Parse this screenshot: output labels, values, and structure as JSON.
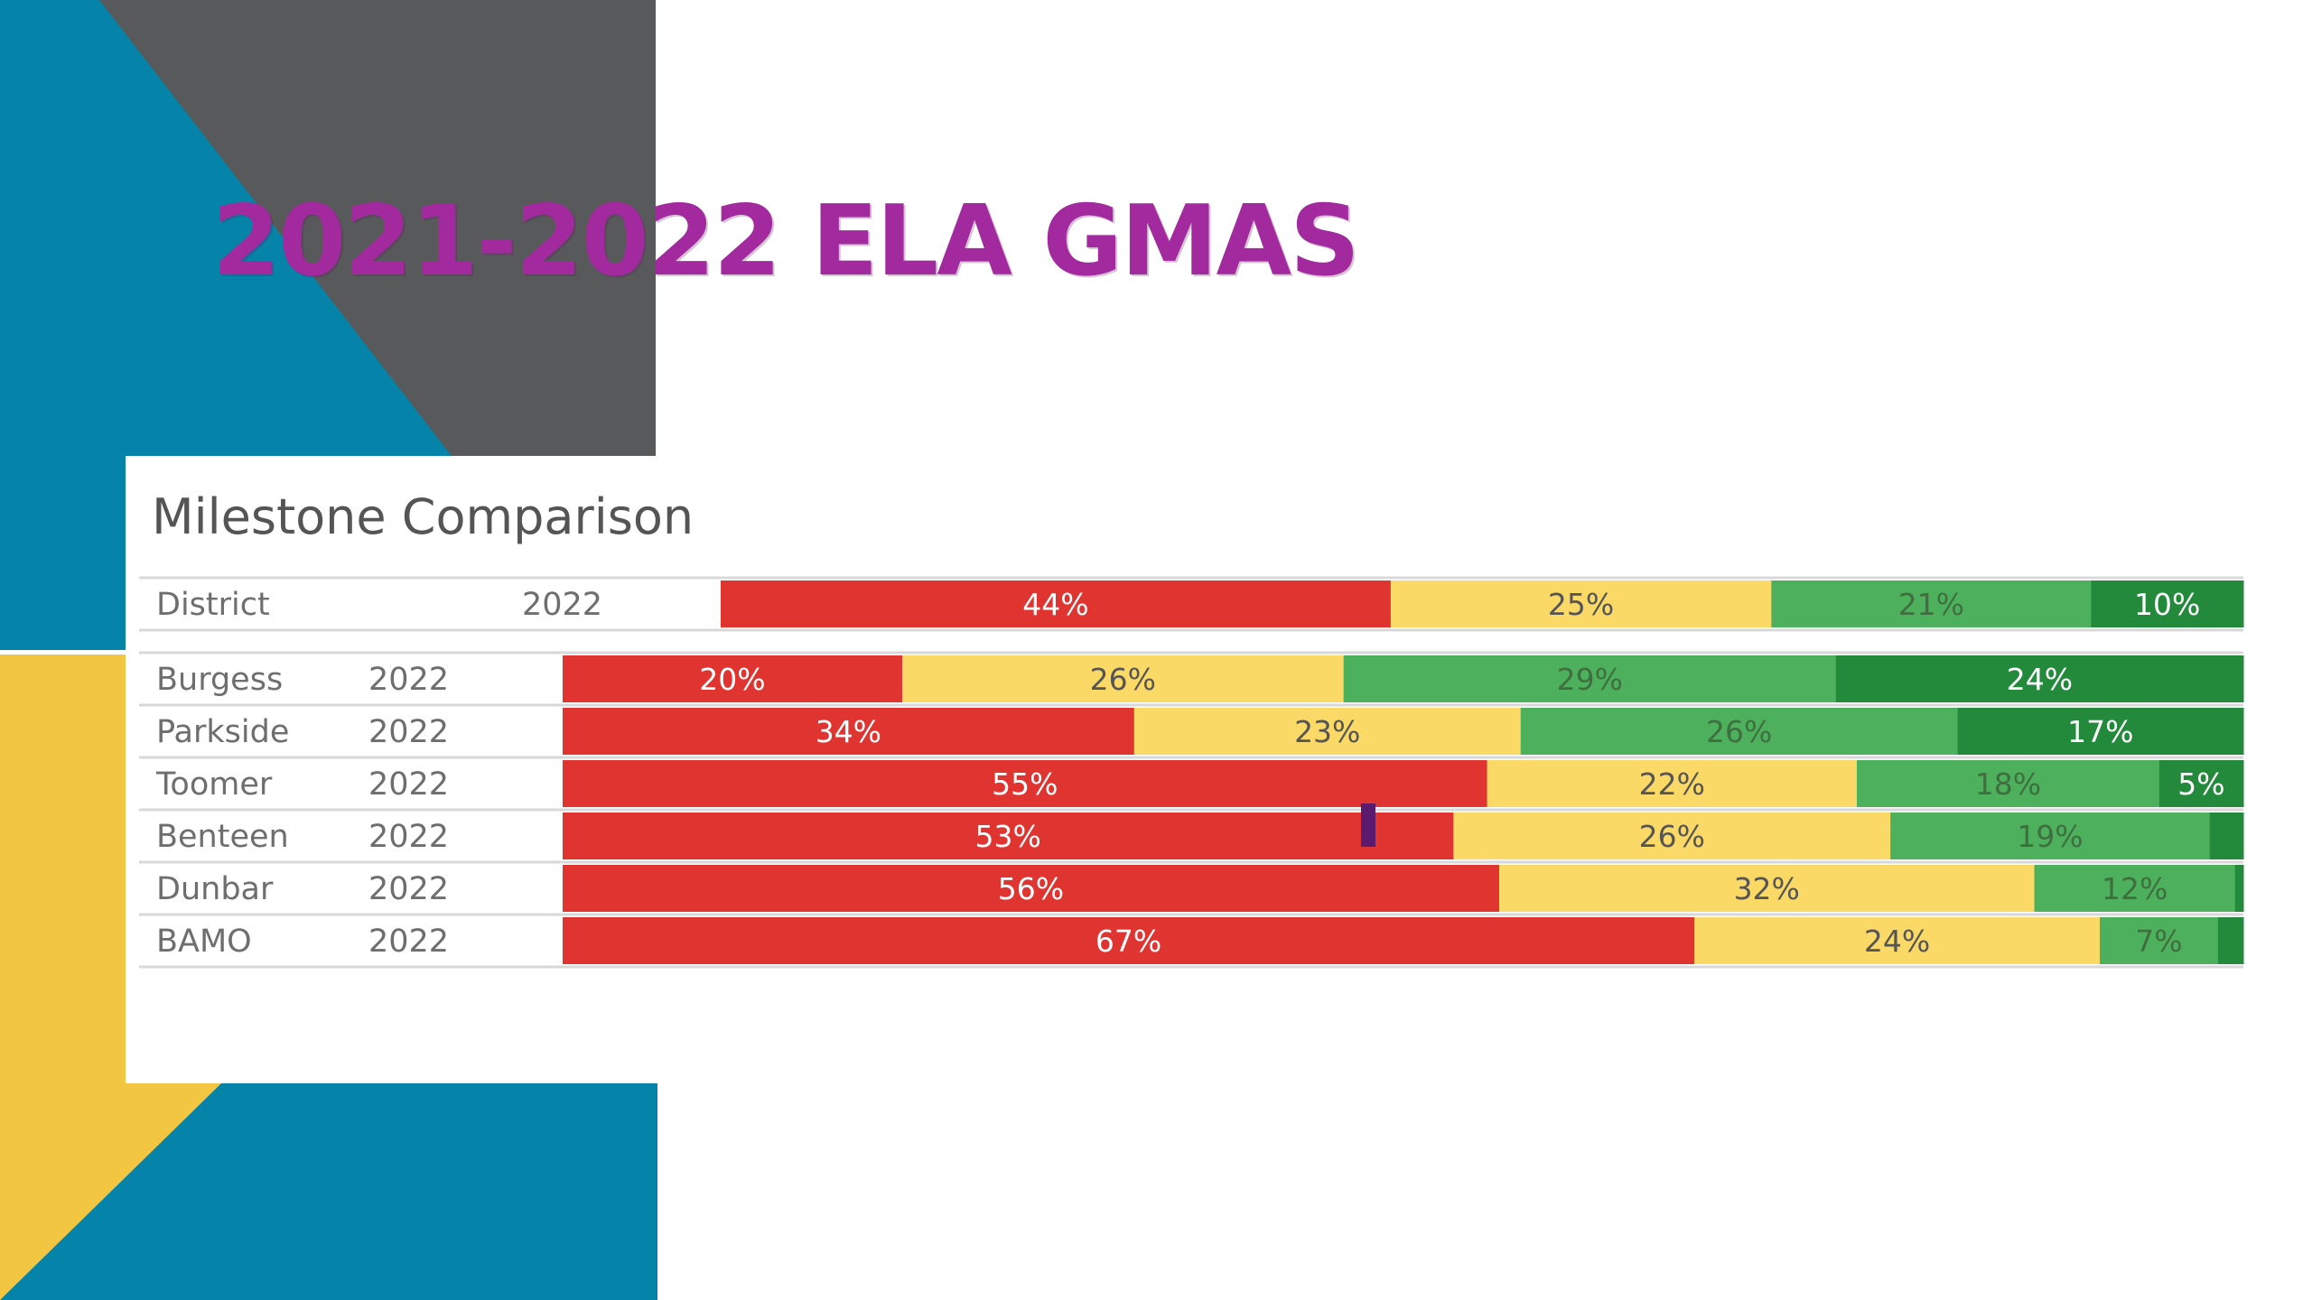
{
  "slide": {
    "title": "2021-2022 ELA GMAS",
    "colors": {
      "teal": "#0683a8",
      "gray": "#58595b",
      "yellow": "#f3c641",
      "title": "#a22a9e",
      "cursor": "#5b1a6e"
    }
  },
  "chart_data": {
    "type": "bar",
    "orientation": "horizontal",
    "stacked": "100%",
    "title": "Milestone Comparison",
    "columns": [
      "school",
      "year"
    ],
    "segment_colors": [
      "#e03431",
      "#fbd966",
      "#4db05c",
      "#238a3c"
    ],
    "label_colors": [
      "#ffffff",
      "#555555",
      "#3f6f3f",
      "#ffffff"
    ],
    "groups": [
      {
        "rows": [
          {
            "name": "District",
            "year": "2022",
            "values": [
              44,
              25,
              21,
              10
            ],
            "labels": [
              "44%",
              "25%",
              "21%",
              "10%"
            ]
          }
        ]
      },
      {
        "rows": [
          {
            "name": "Burgess",
            "year": "2022",
            "values": [
              20,
              26,
              29,
              24
            ],
            "labels": [
              "20%",
              "26%",
              "29%",
              "24%"
            ]
          },
          {
            "name": "Parkside",
            "year": "2022",
            "values": [
              34,
              23,
              26,
              17
            ],
            "labels": [
              "34%",
              "23%",
              "26%",
              "17%"
            ]
          },
          {
            "name": "Toomer",
            "year": "2022",
            "values": [
              55,
              22,
              18,
              5
            ],
            "labels": [
              "55%",
              "22%",
              "18%",
              "5%"
            ]
          },
          {
            "name": "Benteen",
            "year": "2022",
            "values": [
              53,
              26,
              19,
              2
            ],
            "labels": [
              "53%",
              "26%",
              "19%",
              ""
            ]
          },
          {
            "name": "Dunbar",
            "year": "2022",
            "values": [
              56,
              32,
              12,
              0.5
            ],
            "labels": [
              "56%",
              "32%",
              "12%",
              ""
            ]
          },
          {
            "name": "BAMO",
            "year": "2022",
            "values": [
              67,
              24,
              7,
              1.5
            ],
            "labels": [
              "67%",
              "24%",
              "7%",
              ""
            ]
          }
        ]
      }
    ]
  }
}
